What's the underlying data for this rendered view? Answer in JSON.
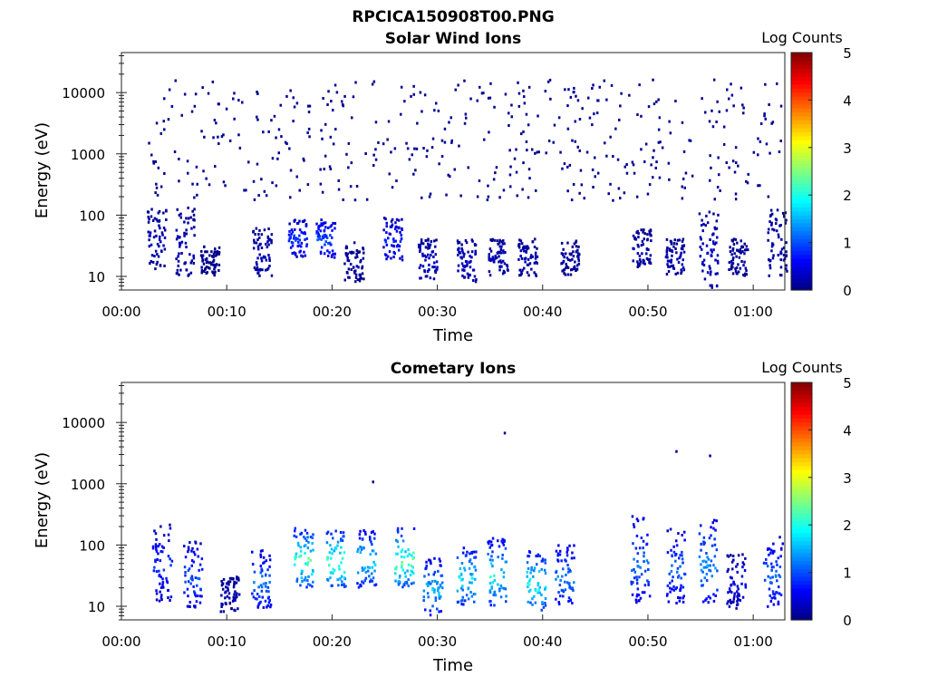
{
  "figure": {
    "filename_title": "RPCICA150908T00.PNG"
  },
  "chart_data": [
    {
      "type": "heatmap",
      "title": "Solar Wind Ions",
      "xlabel": "Time",
      "ylabel": "Energy (eV)",
      "x_ticks": [
        "00:00",
        "00:10",
        "00:20",
        "00:30",
        "00:40",
        "00:50",
        "01:00"
      ],
      "x_tick_minutes": [
        0,
        10,
        20,
        30,
        40,
        50,
        60
      ],
      "xlim_minutes": [
        0,
        63
      ],
      "y_scale": "log",
      "y_ticks": [
        "10",
        "100",
        "1000",
        "10000"
      ],
      "y_tick_values": [
        10,
        100,
        1000,
        10000
      ],
      "ylim": [
        6,
        45000
      ],
      "colorbar": {
        "label": "Log Counts",
        "range": [
          0,
          5
        ],
        "ticks": [
          "0",
          "1",
          "2",
          "3",
          "4",
          "5"
        ],
        "colormap": "jet"
      },
      "sparse_scatter": {
        "minutes_range": [
          2.4,
          62.8
        ],
        "energy_range": [
          170,
          16000
        ],
        "log_count": 0.1
      },
      "bursts": [
        {
          "t": 3.3,
          "e_lo": 13,
          "e_hi": 130,
          "peak_log_count": 0.3
        },
        {
          "t": 6.0,
          "e_lo": 10,
          "e_hi": 140,
          "peak_log_count": 0.3
        },
        {
          "t": 8.3,
          "e_lo": 10,
          "e_hi": 30,
          "peak_log_count": 0.1
        },
        {
          "t": 13.3,
          "e_lo": 10,
          "e_hi": 60,
          "peak_log_count": 0.3
        },
        {
          "t": 16.7,
          "e_lo": 20,
          "e_hi": 85,
          "peak_log_count": 1.0
        },
        {
          "t": 19.3,
          "e_lo": 20,
          "e_hi": 85,
          "peak_log_count": 1.2
        },
        {
          "t": 22.0,
          "e_lo": 8,
          "e_hi": 35,
          "peak_log_count": 0.2
        },
        {
          "t": 25.7,
          "e_lo": 18,
          "e_hi": 90,
          "peak_log_count": 0.9
        },
        {
          "t": 29.0,
          "e_lo": 8,
          "e_hi": 40,
          "peak_log_count": 0.4
        },
        {
          "t": 32.7,
          "e_lo": 8,
          "e_hi": 40,
          "peak_log_count": 0.4
        },
        {
          "t": 35.7,
          "e_lo": 10,
          "e_hi": 40,
          "peak_log_count": 0.3
        },
        {
          "t": 38.5,
          "e_lo": 10,
          "e_hi": 40,
          "peak_log_count": 0.3
        },
        {
          "t": 42.5,
          "e_lo": 10,
          "e_hi": 40,
          "peak_log_count": 0.2
        },
        {
          "t": 49.3,
          "e_lo": 14,
          "e_hi": 60,
          "peak_log_count": 0.3
        },
        {
          "t": 52.5,
          "e_lo": 10,
          "e_hi": 40,
          "peak_log_count": 0.3
        },
        {
          "t": 55.7,
          "e_lo": 6,
          "e_hi": 120,
          "peak_log_count": 0.4
        },
        {
          "t": 58.5,
          "e_lo": 10,
          "e_hi": 40,
          "peak_log_count": 0.2
        },
        {
          "t": 62.2,
          "e_lo": 10,
          "e_hi": 120,
          "peak_log_count": 0.3
        }
      ]
    },
    {
      "type": "heatmap",
      "title": "Cometary Ions",
      "xlabel": "Time",
      "ylabel": "Energy (eV)",
      "x_ticks": [
        "00:00",
        "00:10",
        "00:20",
        "00:30",
        "00:40",
        "00:50",
        "01:00"
      ],
      "x_tick_minutes": [
        0,
        10,
        20,
        30,
        40,
        50,
        60
      ],
      "xlim_minutes": [
        0,
        63
      ],
      "y_scale": "log",
      "y_ticks": [
        "10",
        "100",
        "1000",
        "10000"
      ],
      "y_tick_values": [
        10,
        100,
        1000,
        10000
      ],
      "ylim": [
        6,
        45000
      ],
      "colorbar": {
        "label": "Log Counts",
        "range": [
          0,
          5
        ],
        "ticks": [
          "0",
          "1",
          "2",
          "3",
          "4",
          "5"
        ],
        "colormap": "jet"
      },
      "isolated_points": [
        {
          "t": 23.8,
          "e": 1050
        },
        {
          "t": 36.3,
          "e": 6600
        },
        {
          "t": 52.6,
          "e": 3300
        },
        {
          "t": 55.8,
          "e": 2800
        }
      ],
      "bursts": [
        {
          "t": 3.8,
          "e_lo": 12,
          "e_hi": 210,
          "peak_log_count": 1.0
        },
        {
          "t": 6.7,
          "e_lo": 9,
          "e_hi": 120,
          "peak_log_count": 1.2
        },
        {
          "t": 10.2,
          "e_lo": 8,
          "e_hi": 30,
          "peak_log_count": 0.3
        },
        {
          "t": 13.2,
          "e_lo": 9,
          "e_hi": 80,
          "peak_log_count": 1.4
        },
        {
          "t": 17.2,
          "e_lo": 20,
          "e_hi": 190,
          "peak_log_count": 2.6
        },
        {
          "t": 20.3,
          "e_lo": 20,
          "e_hi": 170,
          "peak_log_count": 2.7
        },
        {
          "t": 23.2,
          "e_lo": 20,
          "e_hi": 170,
          "peak_log_count": 2.0
        },
        {
          "t": 26.8,
          "e_lo": 20,
          "e_hi": 190,
          "peak_log_count": 2.7
        },
        {
          "t": 29.5,
          "e_lo": 7,
          "e_hi": 60,
          "peak_log_count": 1.8
        },
        {
          "t": 32.7,
          "e_lo": 10,
          "e_hi": 90,
          "peak_log_count": 2.1
        },
        {
          "t": 35.6,
          "e_lo": 10,
          "e_hi": 130,
          "peak_log_count": 2.2
        },
        {
          "t": 39.3,
          "e_lo": 8,
          "e_hi": 80,
          "peak_log_count": 2.3
        },
        {
          "t": 42.0,
          "e_lo": 10,
          "e_hi": 100,
          "peak_log_count": 1.5
        },
        {
          "t": 49.2,
          "e_lo": 11,
          "e_hi": 320,
          "peak_log_count": 1.4
        },
        {
          "t": 52.6,
          "e_lo": 11,
          "e_hi": 180,
          "peak_log_count": 1.3
        },
        {
          "t": 55.6,
          "e_lo": 11,
          "e_hi": 280,
          "peak_log_count": 1.6
        },
        {
          "t": 58.3,
          "e_lo": 9,
          "e_hi": 70,
          "peak_log_count": 0.6
        },
        {
          "t": 61.8,
          "e_lo": 9,
          "e_hi": 140,
          "peak_log_count": 1.3
        }
      ]
    }
  ]
}
